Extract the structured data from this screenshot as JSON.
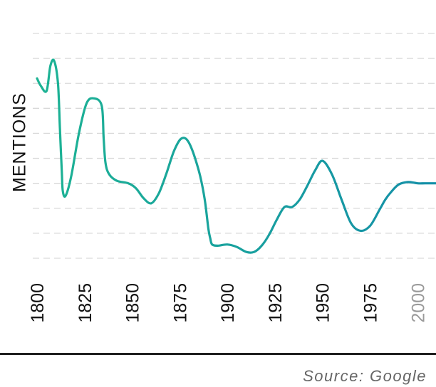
{
  "chart_data": {
    "type": "line",
    "title": "",
    "xlabel": "",
    "ylabel": "MENTIONS",
    "source": "Source: Google",
    "x_ticks": [
      "1800",
      "1825",
      "1850",
      "1875",
      "1900",
      "1925",
      "1950",
      "1975",
      "2000"
    ],
    "faded_ticks": [
      "2000"
    ],
    "xlim": [
      1800,
      2010
    ],
    "ylim": [
      0,
      9
    ],
    "grid": true,
    "gradient_colors": [
      "#1db394",
      "#148fa8"
    ],
    "series": [
      {
        "x": [
          1800,
          1802,
          1805,
          1807,
          1809,
          1811,
          1812,
          1813,
          1813.5,
          1815,
          1818,
          1822,
          1826,
          1830,
          1834,
          1835,
          1836,
          1838,
          1842,
          1848,
          1852,
          1856,
          1860,
          1864,
          1868,
          1872,
          1876,
          1880,
          1885,
          1888,
          1890,
          1891,
          1892,
          1895,
          1900,
          1905,
          1910,
          1914,
          1918,
          1922,
          1926,
          1930,
          1934,
          1938,
          1942,
          1946,
          1950,
          1955,
          1960,
          1965,
          1970,
          1975,
          1980,
          1983,
          1986,
          1990,
          1995,
          2000,
          2004,
          2010
        ],
        "y": [
          7.2,
          6.9,
          6.7,
          7.7,
          7.9,
          7.0,
          5.2,
          3.5,
          2.7,
          2.5,
          3.3,
          5.0,
          6.2,
          6.4,
          6.1,
          4.8,
          3.8,
          3.35,
          3.1,
          3.0,
          2.8,
          2.4,
          2.2,
          2.6,
          3.4,
          4.3,
          4.8,
          4.6,
          3.5,
          2.4,
          1.2,
          0.8,
          0.55,
          0.5,
          0.55,
          0.45,
          0.25,
          0.25,
          0.5,
          0.95,
          1.55,
          2.05,
          2.05,
          2.35,
          2.9,
          3.5,
          3.9,
          3.35,
          2.35,
          1.4,
          1.1,
          1.3,
          1.95,
          2.35,
          2.65,
          2.95,
          3.05,
          3.0,
          3.0,
          3.0
        ]
      }
    ]
  }
}
